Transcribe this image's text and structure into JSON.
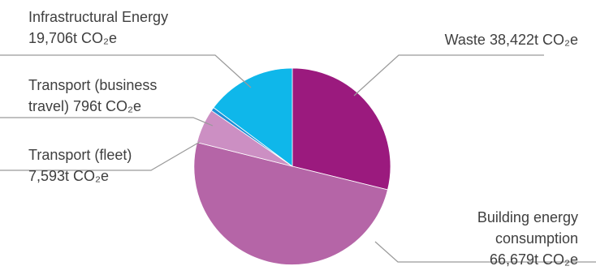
{
  "chart_data": {
    "type": "pie",
    "title": "",
    "unit": "t CO₂e",
    "slices": [
      {
        "name": "Waste",
        "value": 38422,
        "color": "#9b1a7e",
        "label_lines": [
          "Waste 38,422t CO₂e"
        ]
      },
      {
        "name": "Building energy consumption",
        "value": 66679,
        "color": "#b565a7",
        "label_lines": [
          "Building energy",
          "consumption",
          "66,679t CO₂e"
        ]
      },
      {
        "name": "Transport (fleet)",
        "value": 7593,
        "color": "#cc8fc3",
        "label_lines": [
          "Transport (fleet)",
          "7,593t CO₂e"
        ]
      },
      {
        "name": "Transport (business travel)",
        "value": 796,
        "color": "#1e8fd6",
        "label_lines": [
          "Transport (business",
          "travel) 796t CO₂e"
        ]
      },
      {
        "name": "Infrastructural Energy",
        "value": 19706,
        "color": "#0fb7ea",
        "label_lines": [
          "Infrastructural Energy",
          "19,706t CO₂e"
        ]
      }
    ],
    "legend": "none",
    "grid": false
  }
}
